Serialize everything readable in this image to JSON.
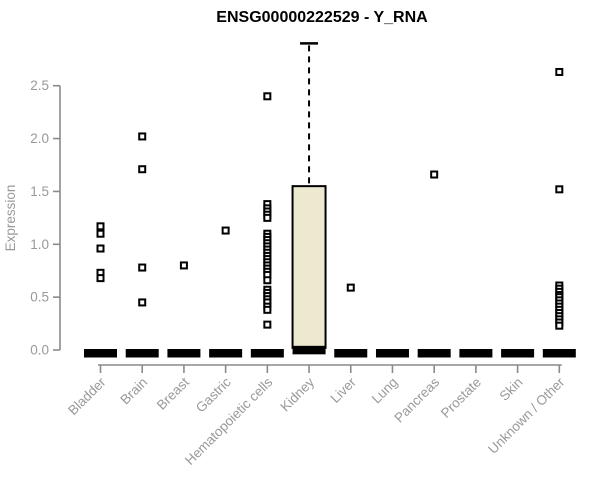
{
  "window": {
    "title": "ENSG00000222529 - Y_RNA"
  },
  "chart_data": {
    "type": "boxplot",
    "title": "ENSG00000222529 - Y_RNA",
    "xlabel": "",
    "ylabel": "Expression",
    "ylim": [
      0,
      2.9
    ],
    "grid": false,
    "legend": false,
    "ytick_labels": [
      "0.0",
      "0.5",
      "1.0",
      "1.5",
      "2.0",
      "2.5"
    ],
    "ytick_values": [
      0,
      0.5,
      1.0,
      1.5,
      2.0,
      2.5
    ],
    "categories": [
      "Bladder",
      "Brain",
      "Breast",
      "Gastric",
      "Hematopoietic cells",
      "Kidney",
      "Liver",
      "Lung",
      "Pancreas",
      "Prostate",
      "Skin",
      "Unknown / Other"
    ],
    "boxes": [
      {
        "category": "Bladder",
        "median": 0,
        "q1": 0,
        "q3": 0,
        "whisker_low": 0,
        "whisker_high": 0,
        "outliers": [
          1.17,
          1.1,
          0.96,
          0.73,
          0.68
        ]
      },
      {
        "category": "Brain",
        "median": 0,
        "q1": 0,
        "q3": 0,
        "whisker_low": 0,
        "whisker_high": 0,
        "outliers": [
          2.02,
          1.71,
          0.78,
          0.45
        ]
      },
      {
        "category": "Breast",
        "median": 0,
        "q1": 0,
        "q3": 0,
        "whisker_low": 0,
        "whisker_high": 0,
        "outliers": [
          0.8
        ]
      },
      {
        "category": "Gastric",
        "median": 0,
        "q1": 0,
        "q3": 0,
        "whisker_low": 0,
        "whisker_high": 0,
        "outliers": [
          1.13
        ]
      },
      {
        "category": "Hematopoietic cells",
        "median": 0,
        "q1": 0,
        "q3": 0,
        "whisker_low": 0,
        "whisker_high": 0,
        "outliers": [
          2.4,
          1.38,
          1.34,
          1.31,
          1.28,
          1.25,
          1.1,
          1.07,
          1.04,
          1.01,
          0.98,
          0.95,
          0.92,
          0.89,
          0.86,
          0.83,
          0.8,
          0.77,
          0.74,
          0.71,
          0.66,
          0.57,
          0.54,
          0.51,
          0.48,
          0.45,
          0.41,
          0.38,
          0.24
        ]
      },
      {
        "category": "Kidney",
        "median": 0.03,
        "q1": 0.02,
        "q3": 1.55,
        "whisker_low": 0,
        "whisker_high": 2.9,
        "outliers": []
      },
      {
        "category": "Liver",
        "median": 0,
        "q1": 0,
        "q3": 0,
        "whisker_low": 0,
        "whisker_high": 0,
        "outliers": [
          0.59
        ]
      },
      {
        "category": "Lung",
        "median": 0,
        "q1": 0,
        "q3": 0,
        "whisker_low": 0,
        "whisker_high": 0,
        "outliers": []
      },
      {
        "category": "Pancreas",
        "median": 0,
        "q1": 0,
        "q3": 0,
        "whisker_low": 0,
        "whisker_high": 0,
        "outliers": [
          1.66
        ]
      },
      {
        "category": "Prostate",
        "median": 0,
        "q1": 0,
        "q3": 0,
        "whisker_low": 0,
        "whisker_high": 0,
        "outliers": []
      },
      {
        "category": "Skin",
        "median": 0,
        "q1": 0,
        "q3": 0,
        "whisker_low": 0,
        "whisker_high": 0,
        "outliers": []
      },
      {
        "category": "Unknown / Other",
        "median": 0,
        "q1": 0,
        "q3": 0,
        "whisker_low": 0,
        "whisker_high": 0,
        "outliers": [
          2.63,
          1.52,
          0.61,
          0.58,
          0.55,
          0.52,
          0.5,
          0.47,
          0.44,
          0.41,
          0.38,
          0.35,
          0.32,
          0.29,
          0.26,
          0.23
        ]
      }
    ],
    "colors": {
      "background": "#ffffff",
      "box_fill": "#ede8d0",
      "box_border": "#000000",
      "median": "#000000",
      "whisker": "#000000",
      "points": "#000000",
      "axis": "#8a8a8a",
      "labels": "#999999",
      "title": "#000000"
    }
  }
}
